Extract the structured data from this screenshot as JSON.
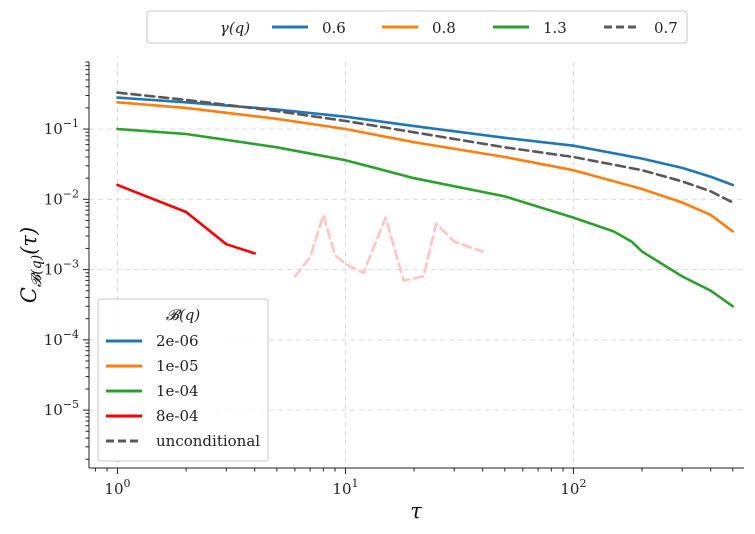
{
  "chart_data": {
    "type": "line",
    "x_scale": "log",
    "y_scale": "log",
    "xlim": [
      0.75,
      560
    ],
    "ylim": [
      1.5e-06,
      0.9
    ],
    "xlabel": "τ",
    "ylabel": "C_{B(q)}(τ)",
    "ylabel_main": "C",
    "ylabel_sub": "𝓑(q)",
    "ylabel_tail": "(τ)",
    "x_ticks": [
      {
        "value": 1,
        "base": "10",
        "exp": "0"
      },
      {
        "value": 10,
        "base": "10",
        "exp": "1"
      },
      {
        "value": 100,
        "base": "10",
        "exp": "2"
      }
    ],
    "y_ticks": [
      {
        "value": 0.1,
        "base": "10",
        "exp": "−1"
      },
      {
        "value": 0.01,
        "base": "10",
        "exp": "−2"
      },
      {
        "value": 0.001,
        "base": "10",
        "exp": "−3"
      },
      {
        "value": 0.0001,
        "base": "10",
        "exp": "−4"
      },
      {
        "value": 1e-05,
        "base": "10",
        "exp": "−5"
      }
    ],
    "grid": true,
    "legend_gamma": {
      "title": "γ(q)",
      "placement": "top-center, outside",
      "entries": [
        {
          "label": "0.6",
          "color": "#1f77b4",
          "dash": false
        },
        {
          "label": "0.8",
          "color": "#ff7f0e",
          "dash": false
        },
        {
          "label": "1.3",
          "color": "#2ca02c",
          "dash": false
        },
        {
          "label": "0.7",
          "color": "#595959",
          "dash": true
        }
      ]
    },
    "legend_bucket": {
      "title": "𝓑(q)",
      "placement": "lower-left",
      "entries": [
        {
          "label": "2e-06",
          "color": "#1f77b4",
          "dash": false
        },
        {
          "label": "1e-05",
          "color": "#ff7f0e",
          "dash": false
        },
        {
          "label": "1e-04",
          "color": "#2ca02c",
          "dash": false
        },
        {
          "label": "8e-04",
          "color": "#ff0000",
          "dash": false
        },
        {
          "label": "unconditional",
          "color": "#595959",
          "dash": true
        }
      ]
    },
    "series": [
      {
        "name": "2e-06",
        "color": "#1f77b4",
        "style": "solid",
        "points": [
          [
            1,
            0.28
          ],
          [
            2,
            0.24
          ],
          [
            5,
            0.19
          ],
          [
            10,
            0.15
          ],
          [
            20,
            0.11
          ],
          [
            50,
            0.075
          ],
          [
            100,
            0.058
          ],
          [
            200,
            0.038
          ],
          [
            300,
            0.028
          ],
          [
            400,
            0.021
          ],
          [
            500,
            0.016
          ]
        ]
      },
      {
        "name": "1e-05",
        "color": "#ff7f0e",
        "style": "solid",
        "points": [
          [
            1,
            0.24
          ],
          [
            2,
            0.2
          ],
          [
            5,
            0.14
          ],
          [
            10,
            0.1
          ],
          [
            20,
            0.065
          ],
          [
            50,
            0.04
          ],
          [
            100,
            0.026
          ],
          [
            200,
            0.014
          ],
          [
            300,
            0.009
          ],
          [
            400,
            0.006
          ],
          [
            500,
            0.0035
          ]
        ]
      },
      {
        "name": "1e-04",
        "color": "#2ca02c",
        "style": "solid",
        "points": [
          [
            1,
            0.1
          ],
          [
            2,
            0.085
          ],
          [
            5,
            0.055
          ],
          [
            10,
            0.036
          ],
          [
            20,
            0.02
          ],
          [
            50,
            0.011
          ],
          [
            100,
            0.0055
          ],
          [
            150,
            0.0035
          ],
          [
            180,
            0.0025
          ],
          [
            200,
            0.0018
          ],
          [
            300,
            0.0008
          ],
          [
            400,
            0.0005
          ],
          [
            500,
            0.0003
          ]
        ]
      },
      {
        "name": "8e-04",
        "color": "#ff0000",
        "style": "solid",
        "points": [
          [
            1,
            0.016
          ],
          [
            2,
            0.0066
          ],
          [
            3,
            0.0023
          ],
          [
            4,
            0.0017
          ]
        ]
      },
      {
        "name": "8e-04 (faded tail)",
        "color": "#ffc4c4",
        "style": "dashed",
        "points": [
          [
            6,
            0.0008
          ],
          [
            7,
            0.0015
          ],
          [
            8,
            0.006
          ],
          [
            9,
            0.0016
          ],
          [
            10,
            0.0012
          ],
          [
            12,
            0.0009
          ],
          [
            15,
            0.0055
          ],
          [
            18,
            0.0007
          ],
          [
            22,
            0.0008
          ],
          [
            25,
            0.0045
          ],
          [
            30,
            0.0025
          ],
          [
            40,
            0.0018
          ]
        ]
      },
      {
        "name": "unconditional",
        "color": "#595959",
        "style": "dashed",
        "points": [
          [
            1,
            0.33
          ],
          [
            2,
            0.26
          ],
          [
            5,
            0.18
          ],
          [
            10,
            0.13
          ],
          [
            20,
            0.09
          ],
          [
            50,
            0.055
          ],
          [
            100,
            0.04
          ],
          [
            200,
            0.026
          ],
          [
            300,
            0.018
          ],
          [
            400,
            0.013
          ],
          [
            500,
            0.009
          ]
        ]
      }
    ]
  }
}
